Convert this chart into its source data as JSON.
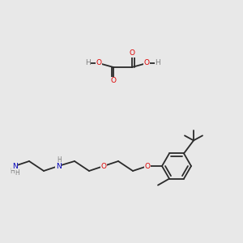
{
  "bg_color": "#e8e8e8",
  "bond_color": "#2a2a2a",
  "bond_lw": 1.3,
  "atom_colors": {
    "O": "#dd0000",
    "N": "#0000bb",
    "C": "#2a2a2a",
    "H": "#808080"
  },
  "font_size_atom": 6.5,
  "font_size_h": 5.5
}
